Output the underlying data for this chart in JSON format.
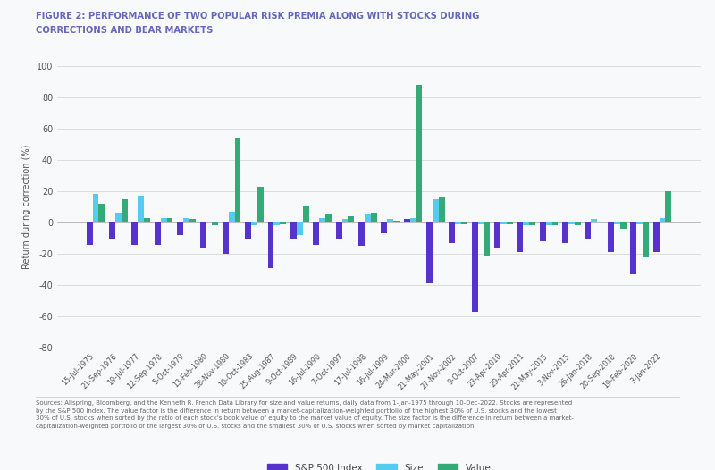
{
  "title_line1": "FIGURE 2: PERFORMANCE OF TWO POPULAR RISK PREMIA ALONG WITH STOCKS DURING",
  "title_line2": "CORRECTIONS AND BEAR MARKETS",
  "title_color": "#6666bb",
  "ylabel": "Return during correction (%)",
  "ylim": [
    -80,
    100
  ],
  "yticks": [
    -80,
    -60,
    -40,
    -20,
    0,
    20,
    40,
    60,
    80,
    100
  ],
  "sp500_color": "#5533cc",
  "size_color": "#55ccee",
  "value_color": "#33aa77",
  "background_color": "#f8f9fa",
  "footnote": "Sources: Allspring, Bloomberg, and the Kenneth R. French Data Library for size and value returns, daily data from 1-Jan-1975 through 10-Dec-2022. Stocks are represented\nby the S&P 500 Index. The value factor is the difference in return between a market-capitalization-weighted portfolio of the highest 30% of U.S. stocks and the lowest\n30% of U.S. stocks when sorted by the ratio of each stock's book value of equity to the market value of equity. The size factor is the difference in return between a market-\ncapitalization-weighted portfolio of the largest 30% of U.S. stocks and the smallest 30% of U.S. stocks when sorted by market capitalization.",
  "dates": [
    "15-Jul-1975",
    "21-Sep-1976",
    "19-Jul-1977",
    "12-Sep-1978",
    "5-Oct-1979",
    "13-Feb-1980",
    "28-Nov-1980",
    "10-Oct-1983",
    "25-Aug-1987",
    "9-Oct-1989",
    "16-Jul-1990",
    "7-Oct-1997",
    "17-Jul-1998",
    "16-Jul-1999",
    "24-Mar-2000",
    "21-May-2001",
    "27-Nov-2002",
    "9-Oct-2007",
    "23-Apr-2010",
    "29-Apr-2011",
    "21-May-2015",
    "3-Nov-2015",
    "26-Jan-2018",
    "20-Sep-2018",
    "19-Feb-2020",
    "3-Jan-2022"
  ],
  "sp500": [
    -14,
    -10,
    -14,
    -14,
    -8,
    -16,
    -20,
    -10,
    -29,
    -10,
    -14,
    -10,
    -15,
    -7,
    2,
    -39,
    -13,
    -57,
    -16,
    -19,
    -12,
    -13,
    -10,
    -19,
    -33,
    -19
  ],
  "size": [
    18,
    6,
    17,
    3,
    3,
    0,
    7,
    -2,
    -2,
    -8,
    3,
    2,
    5,
    2,
    3,
    15,
    -1,
    -1,
    -1,
    -2,
    -2,
    -1,
    2,
    -1,
    -1,
    3
  ],
  "value": [
    12,
    15,
    3,
    3,
    2,
    -2,
    54,
    23,
    -1,
    10,
    5,
    4,
    6,
    1,
    88,
    16,
    -1,
    -21,
    -1,
    -2,
    -2,
    -2,
    0,
    -4,
    -22,
    20
  ]
}
